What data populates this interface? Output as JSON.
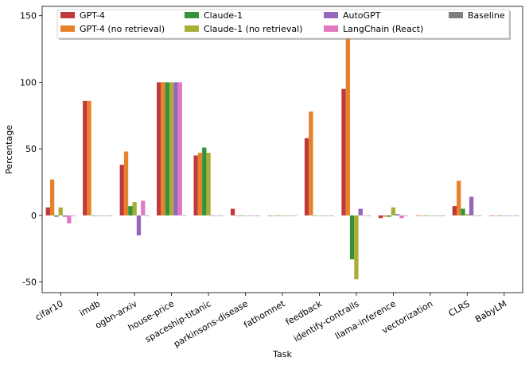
{
  "chart_data": {
    "type": "bar",
    "title": "",
    "xlabel": "Task",
    "ylabel": "Percentage",
    "ylim": [
      -58,
      157
    ],
    "yticks": [
      -50,
      0,
      50,
      100,
      150
    ],
    "categories": [
      "cifar10",
      "imdb",
      "ogbn-arxiv",
      "house-price",
      "spaceship-titanic",
      "parkinsons-disease",
      "fathomnet",
      "feedback",
      "identify-contrails",
      "llama-inference",
      "vectorization",
      "CLRS",
      "BabyLM"
    ],
    "series": [
      {
        "name": "GPT-4",
        "color": "#c0393b",
        "values": [
          6,
          86,
          38,
          100,
          45,
          5,
          0,
          58,
          95,
          -2,
          0,
          7,
          0
        ]
      },
      {
        "name": "GPT-4 (no retrieval)",
        "color": "#e8822a",
        "values": [
          27,
          86,
          48,
          100,
          47,
          0,
          0,
          78,
          143,
          -1,
          0,
          26,
          0
        ]
      },
      {
        "name": "Claude-1",
        "color": "#33923a",
        "values": [
          -1,
          0,
          7,
          100,
          51,
          0,
          0,
          0,
          -33,
          -1,
          0,
          5,
          0
        ]
      },
      {
        "name": "Claude-1 (no retrieval)",
        "color": "#a9ad36",
        "values": [
          6,
          0,
          10,
          100,
          47,
          0,
          0,
          0,
          -48,
          6,
          0,
          1,
          0
        ]
      },
      {
        "name": "AutoGPT",
        "color": "#9467bd",
        "values": [
          -1,
          0,
          -15,
          100,
          0,
          0,
          0,
          0,
          5,
          1,
          0,
          14,
          0
        ]
      },
      {
        "name": "LangChain (React)",
        "color": "#e377c2",
        "values": [
          -6,
          0,
          11,
          100,
          0,
          0,
          0,
          0,
          0,
          -2,
          0,
          0,
          0
        ]
      },
      {
        "name": "Baseline",
        "color": "#7f7f7f",
        "values": [
          0,
          0,
          0,
          0,
          0,
          0,
          0,
          0,
          0,
          0,
          0,
          0,
          0
        ]
      }
    ],
    "grid": false,
    "legend_position": "top"
  }
}
